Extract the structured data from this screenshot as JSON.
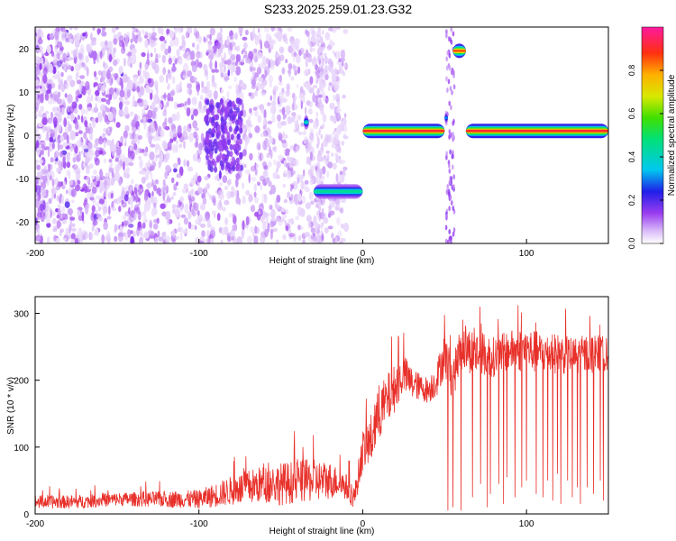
{
  "title": "S233.2025.259.01.23.G32",
  "colors": {
    "snr_line": "#e8302a",
    "background": "#ffffff"
  },
  "chart_data": [
    {
      "type": "heatmap",
      "name": "spectrogram",
      "xlabel": "Height of straight line (km)",
      "ylabel": "Frequency (Hz)",
      "xlim": [
        -200,
        150
      ],
      "ylim": [
        -25,
        25
      ],
      "x_ticks": [
        -200,
        -100,
        0,
        100
      ],
      "y_ticks": [
        -20,
        -10,
        0,
        10,
        20
      ],
      "grid": false,
      "colorbar": {
        "label": "Normalized spectral amplitude",
        "range": [
          0.0,
          1.0
        ],
        "ticks": [
          0.0,
          0.2,
          0.4,
          0.6,
          0.8
        ],
        "colormap": "rainbow: white-purple-blue-cyan-green-yellow-orange-red-magenta"
      },
      "noise_region": {
        "x_range": [
          -200,
          -10
        ],
        "freq_range": [
          -25,
          25
        ],
        "typical_amplitude": 0.1,
        "note": "speckled purple noise"
      },
      "ridge_segments": [
        {
          "x": [
            -36,
            -33
          ],
          "freq": 3,
          "amplitude": 0.4
        },
        {
          "x": [
            -30,
            0
          ],
          "freq": -13,
          "amplitude": 0.45
        },
        {
          "x": [
            0,
            50
          ],
          "freq": 1,
          "amplitude": 0.9
        },
        {
          "x": [
            50,
            52
          ],
          "freq": 4,
          "amplitude": 0.3
        },
        {
          "x": [
            55,
            63
          ],
          "freq": 19.5,
          "amplitude": 0.85
        },
        {
          "x": [
            63,
            150
          ],
          "freq": 1,
          "amplitude": 0.9
        }
      ],
      "vertical_bands": [
        {
          "x": [
            51,
            56
          ],
          "freq_range": [
            -25,
            25
          ],
          "amplitude": 0.15
        },
        {
          "x": [
            -28,
            -24
          ],
          "freq_range": [
            -25,
            25
          ],
          "amplitude": 0.05
        }
      ]
    },
    {
      "type": "line",
      "name": "snr",
      "xlabel": "Height of straight line (km)",
      "ylabel": "SNR (10 * v/v)",
      "xlim": [
        -200,
        150
      ],
      "ylim": [
        0,
        325
      ],
      "x_ticks": [
        -200,
        -100,
        0,
        100
      ],
      "y_ticks": [
        0,
        100,
        200,
        300
      ],
      "grid": false,
      "series": [
        {
          "name": "SNR",
          "x": [
            -200,
            -175,
            -150,
            -125,
            -100,
            -90,
            -80,
            -70,
            -60,
            -50,
            -40,
            -30,
            -20,
            -15,
            -10,
            -5,
            0,
            5,
            10,
            15,
            20,
            25,
            30,
            35,
            40,
            45,
            50,
            55,
            60,
            65,
            70,
            80,
            90,
            100,
            110,
            120,
            130,
            140,
            150
          ],
          "y": [
            18,
            18,
            22,
            22,
            22,
            28,
            35,
            40,
            45,
            45,
            48,
            50,
            50,
            48,
            40,
            25,
            95,
            110,
            150,
            170,
            190,
            210,
            195,
            190,
            185,
            200,
            240,
            200,
            250,
            245,
            240,
            235,
            245,
            245,
            240,
            240,
            235,
            240,
            240
          ],
          "noise_amplitude": [
            10,
            10,
            10,
            12,
            14,
            18,
            22,
            26,
            28,
            32,
            32,
            32,
            28,
            22,
            20,
            18,
            30,
            40,
            40,
            40,
            35,
            30,
            25,
            20,
            20,
            25,
            35,
            30,
            35,
            35,
            35,
            30,
            30,
            35,
            30,
            30,
            30,
            30,
            25
          ]
        }
      ],
      "dropouts": [
        {
          "x": 52,
          "y": 5
        },
        {
          "x": 55,
          "y": 10
        },
        {
          "x": 60,
          "y": 5
        },
        {
          "x": 67,
          "y": 25
        },
        {
          "x": 72,
          "y": 45
        },
        {
          "x": 76,
          "y": 10
        },
        {
          "x": 78,
          "y": 30
        },
        {
          "x": 83,
          "y": 45
        },
        {
          "x": 86,
          "y": 15
        },
        {
          "x": 88,
          "y": 55
        },
        {
          "x": 93,
          "y": 25
        },
        {
          "x": 97,
          "y": 40
        },
        {
          "x": 100,
          "y": 50
        },
        {
          "x": 106,
          "y": 30
        },
        {
          "x": 110,
          "y": 25
        },
        {
          "x": 113,
          "y": 50
        },
        {
          "x": 116,
          "y": 20
        },
        {
          "x": 119,
          "y": 60
        },
        {
          "x": 121,
          "y": 15
        },
        {
          "x": 125,
          "y": 50
        },
        {
          "x": 128,
          "y": 25
        },
        {
          "x": 131,
          "y": 40
        },
        {
          "x": 133,
          "y": 15
        },
        {
          "x": 137,
          "y": 40
        },
        {
          "x": 141,
          "y": 30
        },
        {
          "x": 145,
          "y": 50
        },
        {
          "x": 147,
          "y": 20
        }
      ]
    }
  ]
}
